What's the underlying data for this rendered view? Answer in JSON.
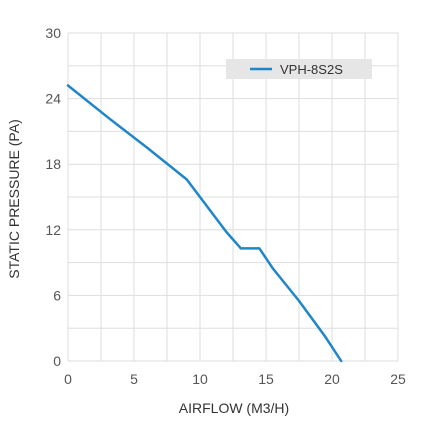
{
  "chart_data": {
    "type": "line",
    "title": "",
    "xlabel": "AIRFLOW (M3/H)",
    "ylabel": "STATIC PRESSURE (PA)",
    "xlim": [
      0,
      25
    ],
    "ylim": [
      0,
      30
    ],
    "xticks": [
      0,
      5,
      10,
      15,
      20,
      25
    ],
    "yticks": [
      0,
      6,
      12,
      18,
      24,
      30
    ],
    "grid": true,
    "legend_position": "top-right",
    "series": [
      {
        "name": "VPH-8S2S",
        "color": "#1f86c8",
        "x": [
          0,
          3,
          6,
          9,
          12,
          13.1,
          14.5,
          15.5,
          17.5,
          19.5,
          20.7
        ],
        "y": [
          25.2,
          22.3,
          19.5,
          16.6,
          11.8,
          10.3,
          10.3,
          8.5,
          5.5,
          2.2,
          0
        ]
      }
    ]
  }
}
